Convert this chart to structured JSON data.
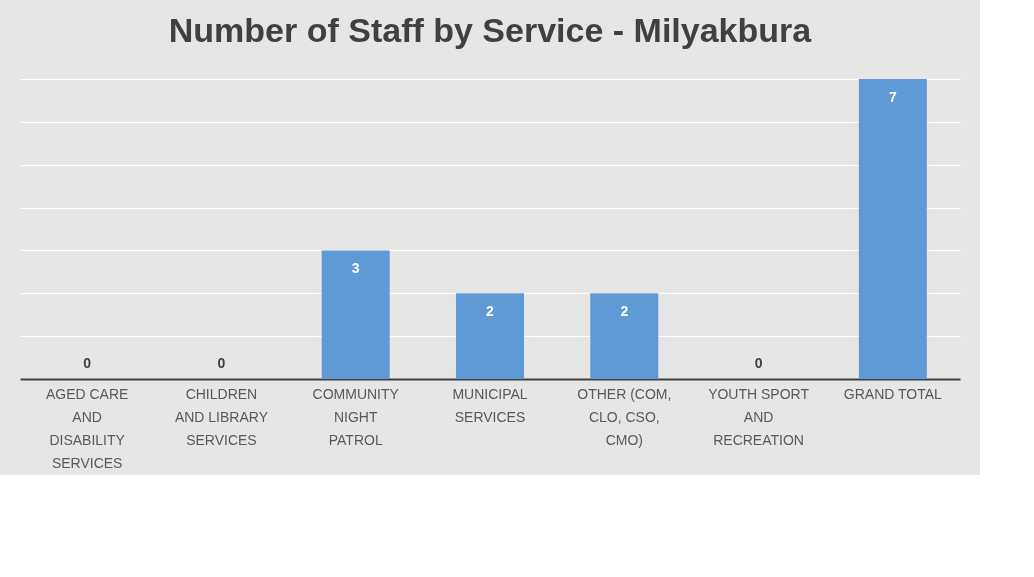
{
  "chart_data": {
    "type": "bar",
    "title": "Number of Staff by Service - Milyakbura",
    "categories": [
      "AGED CARE AND DISABILITY SERVICES",
      "CHILDREN AND LIBRARY SERVICES",
      "COMMUNITY NIGHT PATROL",
      "MUNICIPAL SERVICES",
      "OTHER (COM, CLO, CSO, CMO)",
      "YOUTH SPORT AND RECREATION",
      "GRAND TOTAL"
    ],
    "values": [
      0,
      0,
      3,
      2,
      2,
      0,
      7
    ],
    "color": "#5f9ad6",
    "grid": "y",
    "tick_labels": "x",
    "data_labels": true
  }
}
